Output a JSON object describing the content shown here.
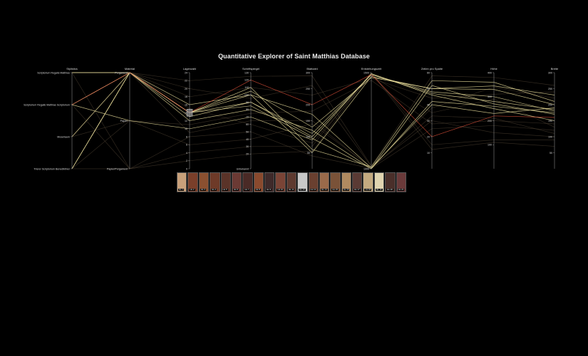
{
  "title": "Quantitative Explorer of Saint Matthias Database",
  "colors": {
    "background": "#000000",
    "line_dim": "#5a4a38",
    "line_bright": "#f3e6a0",
    "line_red": "#e0503a",
    "axis": "#888888",
    "highlight_box": "#9a9a9a"
  },
  "chart_data": {
    "type": "parallel_coordinates",
    "title": "Quantitative Explorer of Saint Matthias Database",
    "axes": [
      {
        "label": "Stylistics",
        "kind": "categorical",
        "ticks": [
          "Scriptorium Regalis Matthias",
          "Scriptorium Regalis Matthias Scriptorium",
          "Moselraum",
          "Trierer Scriptorium Benediktiner"
        ]
      },
      {
        "label": "Material",
        "kind": "categorical",
        "ticks": [
          "Pergament",
          "Papier",
          "Papier/Pergament"
        ]
      },
      {
        "label": "Lagenzahl",
        "kind": "numeric",
        "range": [
          0,
          24
        ],
        "ticks": [
          "24",
          "22",
          "20",
          "18",
          "16",
          "14",
          "12",
          "10",
          "8",
          "6",
          "4",
          "2",
          "0"
        ]
      },
      {
        "label": "Schriftspiegel",
        "kind": "numeric",
        "range": [
          0,
          130
        ],
        "ticks": [
          "130",
          "120",
          "110",
          "100",
          "90",
          "80",
          "70",
          "60",
          "50",
          "40",
          "30",
          "20",
          "Unbekannt"
        ]
      },
      {
        "label": "Blattzahl",
        "kind": "numeric",
        "range": [
          0,
          300
        ],
        "ticks": [
          "300",
          "250",
          "200",
          "150",
          "100",
          "50"
        ]
      },
      {
        "label": "Entstehungszeit",
        "kind": "numeric",
        "range": [
          1000,
          1500
        ],
        "ticks": [
          "1500",
          "1000"
        ]
      },
      {
        "label": "Zeilen pro Spalte",
        "kind": "numeric",
        "range": [
          0,
          60
        ],
        "ticks": [
          "60",
          "50",
          "40",
          "30",
          "20",
          "10"
        ]
      },
      {
        "label": "Höhe",
        "kind": "numeric",
        "range": [
          0,
          400
        ],
        "ticks": [
          "400",
          "300",
          "200",
          "100"
        ]
      },
      {
        "label": "Breite",
        "kind": "numeric",
        "range": [
          0,
          300
        ],
        "ticks": [
          "300",
          "250",
          "200",
          "150",
          "100",
          "50"
        ]
      }
    ],
    "manuscripts": [
      {
        "values": [
          "Scriptorium Regalis Matthias Scriptorium",
          "Pergament",
          14,
          110,
          60,
          1010,
          55,
          360,
          210
        ],
        "style": "bright"
      },
      {
        "values": [
          "Trierer Scriptorium Benediktiner",
          "Pergament",
          14,
          100,
          50,
          1480,
          50,
          330,
          200
        ],
        "style": "bright"
      },
      {
        "values": [
          "Moselraum",
          "Pergament",
          13,
          90,
          110,
          1490,
          48,
          300,
          180
        ],
        "style": "bright"
      },
      {
        "values": [
          "Scriptorium Regalis Matthias",
          "Pergament",
          12,
          80,
          120,
          1000,
          52,
          270,
          170
        ],
        "style": "bright"
      },
      {
        "values": [
          "Scriptorium Regalis Matthias Scriptorium",
          "Papier",
          10,
          70,
          90,
          1495,
          46,
          250,
          150
        ],
        "style": "bright"
      },
      {
        "values": [
          "Trierer Scriptorium Benediktiner",
          "Pergament",
          16,
          100,
          170,
          1005,
          40,
          230,
          190
        ],
        "style": "bright"
      },
      {
        "values": [
          "Moselraum",
          "Pergament",
          15,
          60,
          80,
          1485,
          35,
          290,
          130
        ],
        "style": "dim"
      },
      {
        "values": [
          "Scriptorium Regalis Matthias",
          "Papier/Pergament",
          8,
          50,
          40,
          1002,
          25,
          180,
          120
        ],
        "style": "dim"
      },
      {
        "values": [
          "Scriptorium Regalis Matthias Scriptorium",
          "Pergament",
          14,
          120,
          200,
          1490,
          20,
          220,
          160
        ],
        "style": "red"
      },
      {
        "values": [
          "Trierer Scriptorium Benediktiner",
          "Papier",
          6,
          40,
          140,
          1008,
          30,
          150,
          100
        ],
        "style": "dim"
      },
      {
        "values": [
          "Moselraum",
          "Pergament",
          18,
          110,
          230,
          1470,
          44,
          310,
          240
        ],
        "style": "dim"
      },
      {
        "values": [
          "Scriptorium Regalis Matthias",
          "Pergament",
          20,
          95,
          260,
          1012,
          38,
          340,
          220
        ],
        "style": "dim"
      },
      {
        "values": [
          "Trierer Scriptorium Benediktiner",
          "Papier/Pergament",
          4,
          30,
          70,
          1500,
          15,
          120,
          90
        ],
        "style": "dim"
      },
      {
        "values": [
          "Scriptorium Regalis Matthias Scriptorium",
          "Pergament",
          14,
          85,
          95,
          1000,
          42,
          260,
          175
        ],
        "style": "bright"
      },
      {
        "values": [
          "Moselraum",
          "Papier",
          11,
          75,
          180,
          1460,
          28,
          200,
          140
        ],
        "style": "dim"
      },
      {
        "values": [
          "Scriptorium Regalis Matthias",
          "Pergament",
          22,
          125,
          290,
          1015,
          58,
          380,
          260
        ],
        "style": "dim"
      },
      {
        "values": [
          "Trierer Scriptorium Benediktiner",
          "Pergament",
          14,
          105,
          130,
          1475,
          50,
          345,
          230
        ],
        "style": "bright"
      },
      {
        "values": [
          "Moselraum",
          "Pergament",
          9,
          65,
          150,
          1003,
          33,
          210,
          110
        ],
        "style": "dim"
      },
      {
        "values": [
          "Scriptorium Regalis Matthias Scriptorium",
          "Papier/Pergament",
          2,
          20,
          55,
          1498,
          12,
          110,
          70
        ],
        "style": "dim"
      },
      {
        "values": [
          "Scriptorium Regalis Matthias",
          "Pergament",
          14,
          90,
          100,
          1490,
          47,
          280,
          185
        ],
        "style": "bright"
      }
    ],
    "thumbnails": [
      {
        "label": "Hs 1",
        "color": "#c8a07a"
      },
      {
        "label": "Hs 2",
        "color": "#7a3f2a"
      },
      {
        "label": "Hs 3",
        "color": "#8b5030"
      },
      {
        "label": "Hs 4",
        "color": "#6e3a28"
      },
      {
        "label": "Hs 5",
        "color": "#5a3328"
      },
      {
        "label": "Hs 6",
        "color": "#6b3a34"
      },
      {
        "label": "Hs 7",
        "color": "#4a2a26"
      },
      {
        "label": "Hs 8",
        "color": "#8a4a2e"
      },
      {
        "label": "Hs 9",
        "color": "#3f2a2a"
      },
      {
        "label": "Hs 10",
        "color": "#7a4436"
      },
      {
        "label": "Hs 11",
        "color": "#5e3a30"
      },
      {
        "label": "Hs 12",
        "color": "#c8c8c8"
      },
      {
        "label": "Hs 13",
        "color": "#6a4030"
      },
      {
        "label": "Hs 14",
        "color": "#9a6a4a"
      },
      {
        "label": "Hs 15",
        "color": "#7a5238"
      },
      {
        "label": "Hs 16",
        "color": "#b08a60"
      },
      {
        "label": "Hs 17",
        "color": "#5a3a34"
      },
      {
        "label": "Hs 18",
        "color": "#c4aa80"
      },
      {
        "label": "Hs 19",
        "color": "#e0d4b0"
      },
      {
        "label": "Hs 20",
        "color": "#4a2f2a"
      },
      {
        "label": "Hs 21",
        "color": "#6a3a3a"
      }
    ]
  }
}
